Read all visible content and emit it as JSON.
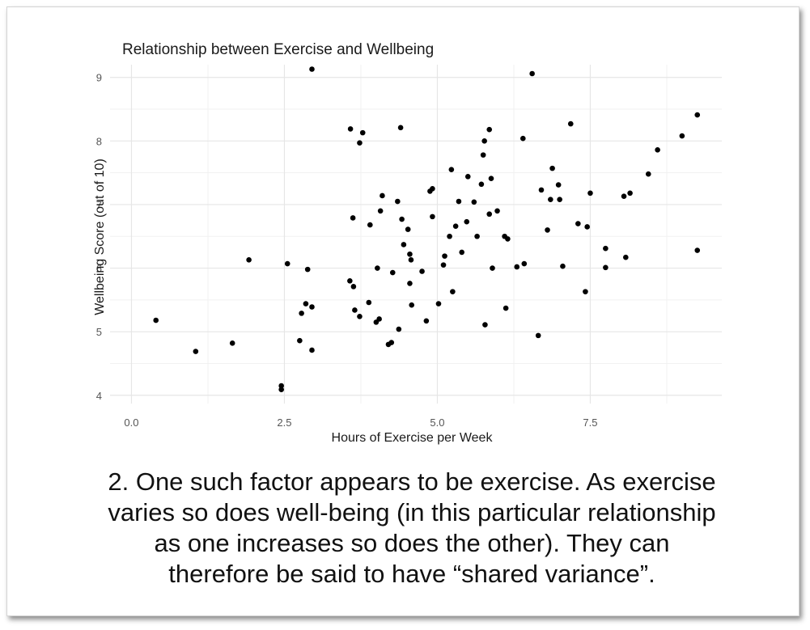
{
  "chart_data": {
    "type": "scatter",
    "title": "Relationship between Exercise and Wellbeing",
    "xlabel": "Hours of Exercise per Week",
    "ylabel": "Wellbeing Score (out of 10)",
    "xlim": [
      -0.35,
      9.65
    ],
    "ylim": [
      3.87,
      9.2
    ],
    "xticks": [
      0,
      2.5,
      5,
      7.5
    ],
    "xtick_labels": [
      "0.0",
      "2.5",
      "5.0",
      "7.5"
    ],
    "yticks": [
      4,
      5,
      6,
      7,
      8,
      9
    ],
    "ytick_labels": [
      "4",
      "5",
      "6",
      "7",
      "8",
      "9"
    ],
    "grid": true,
    "point_color": "#000000",
    "points": [
      [
        0.4,
        5.18
      ],
      [
        1.05,
        4.69
      ],
      [
        1.65,
        4.82
      ],
      [
        1.92,
        6.13
      ],
      [
        2.45,
        4.15
      ],
      [
        2.45,
        4.09
      ],
      [
        2.55,
        6.07
      ],
      [
        2.75,
        4.86
      ],
      [
        2.78,
        5.29
      ],
      [
        2.85,
        5.44
      ],
      [
        2.88,
        5.98
      ],
      [
        2.95,
        5.39
      ],
      [
        2.95,
        4.71
      ],
      [
        2.95,
        9.13
      ],
      [
        3.57,
        5.8
      ],
      [
        3.58,
        8.19
      ],
      [
        3.62,
        6.79
      ],
      [
        3.63,
        5.71
      ],
      [
        3.65,
        5.34
      ],
      [
        3.73,
        5.24
      ],
      [
        3.73,
        7.97
      ],
      [
        3.78,
        8.13
      ],
      [
        3.88,
        5.46
      ],
      [
        3.9,
        6.68
      ],
      [
        4.0,
        5.15
      ],
      [
        4.02,
        6.0
      ],
      [
        4.05,
        5.2
      ],
      [
        4.07,
        6.9
      ],
      [
        4.1,
        7.14
      ],
      [
        4.2,
        4.8
      ],
      [
        4.25,
        4.83
      ],
      [
        4.27,
        5.93
      ],
      [
        4.35,
        7.05
      ],
      [
        4.37,
        5.04
      ],
      [
        4.4,
        8.21
      ],
      [
        4.42,
        6.77
      ],
      [
        4.45,
        6.37
      ],
      [
        4.52,
        6.61
      ],
      [
        4.55,
        6.22
      ],
      [
        4.55,
        5.76
      ],
      [
        4.57,
        6.13
      ],
      [
        4.58,
        5.42
      ],
      [
        4.75,
        5.95
      ],
      [
        4.82,
        5.17
      ],
      [
        4.88,
        7.21
      ],
      [
        4.92,
        6.81
      ],
      [
        4.92,
        7.25
      ],
      [
        5.02,
        5.44
      ],
      [
        5.1,
        6.05
      ],
      [
        5.12,
        6.19
      ],
      [
        5.2,
        6.5
      ],
      [
        5.23,
        7.55
      ],
      [
        5.25,
        5.63
      ],
      [
        5.3,
        6.66
      ],
      [
        5.35,
        7.05
      ],
      [
        5.4,
        6.25
      ],
      [
        5.48,
        6.73
      ],
      [
        5.5,
        7.44
      ],
      [
        5.6,
        7.04
      ],
      [
        5.65,
        6.5
      ],
      [
        5.72,
        7.32
      ],
      [
        5.75,
        7.78
      ],
      [
        5.77,
        8.0
      ],
      [
        5.78,
        5.11
      ],
      [
        5.85,
        6.85
      ],
      [
        5.85,
        8.18
      ],
      [
        5.88,
        7.41
      ],
      [
        5.9,
        6.0
      ],
      [
        5.98,
        6.9
      ],
      [
        6.1,
        6.5
      ],
      [
        6.12,
        5.37
      ],
      [
        6.15,
        6.46
      ],
      [
        6.3,
        6.02
      ],
      [
        6.4,
        8.04
      ],
      [
        6.42,
        6.07
      ],
      [
        6.55,
        9.06
      ],
      [
        6.65,
        4.94
      ],
      [
        6.7,
        7.23
      ],
      [
        6.8,
        6.6
      ],
      [
        6.85,
        7.08
      ],
      [
        6.88,
        7.57
      ],
      [
        6.98,
        7.31
      ],
      [
        7.0,
        7.08
      ],
      [
        7.05,
        6.03
      ],
      [
        7.18,
        8.27
      ],
      [
        7.3,
        6.7
      ],
      [
        7.42,
        5.63
      ],
      [
        7.45,
        6.65
      ],
      [
        7.5,
        7.18
      ],
      [
        7.75,
        6.31
      ],
      [
        7.75,
        6.01
      ],
      [
        8.05,
        7.13
      ],
      [
        8.08,
        6.17
      ],
      [
        8.15,
        7.18
      ],
      [
        8.45,
        7.48
      ],
      [
        8.6,
        7.86
      ],
      [
        9.0,
        8.08
      ],
      [
        9.25,
        8.41
      ],
      [
        9.25,
        6.28
      ]
    ]
  },
  "caption": {
    "line1": "2. One such factor appears to be exercise. As exercise",
    "line2": "varies so does well-being (in this particular relationship",
    "line3": "as one increases so does the other). They can",
    "line4": "therefore be said to have “shared variance”."
  }
}
